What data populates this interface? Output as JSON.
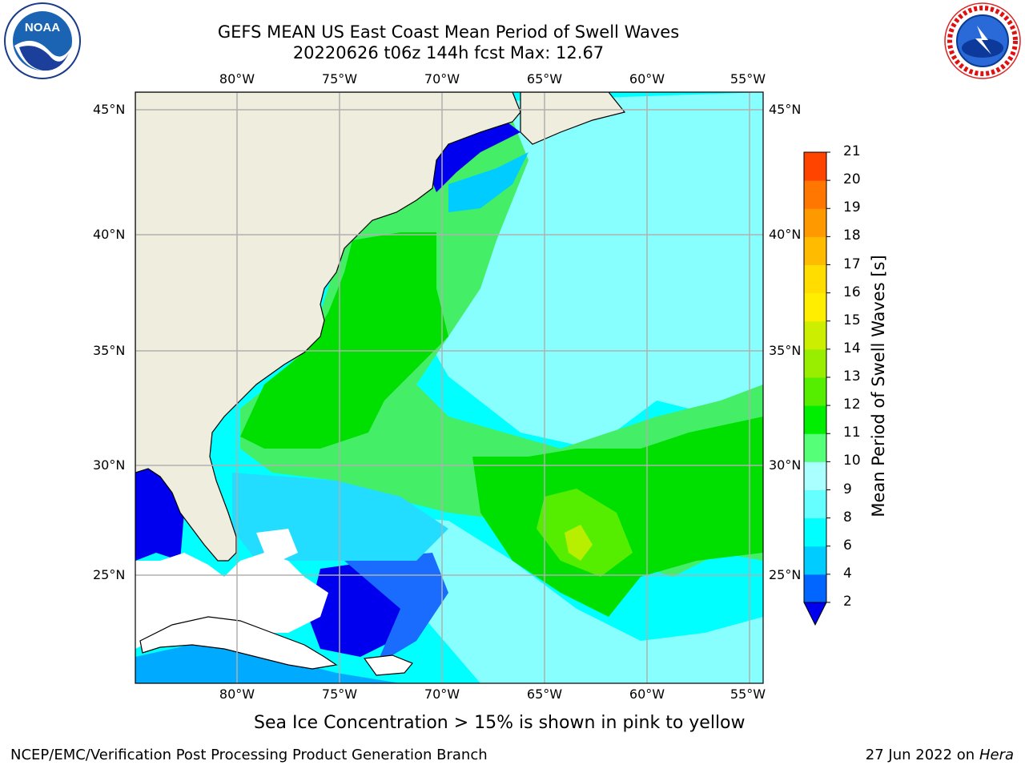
{
  "title": {
    "line1": "GEFS MEAN US East Coast Mean Period of Swell Waves",
    "line2": "20220626 t06z 144h fcst   Max: 12.67"
  },
  "logos": {
    "left": {
      "text": "NOAA",
      "ring_text": "NATIONAL OCEANIC AND ATMOSPHERIC ADMINISTRATION · U.S. DEPARTMENT OF COMMERCE"
    },
    "right": {
      "ring_text": "NATIONAL WEATHER SERVICE"
    }
  },
  "map": {
    "extent": {
      "lon_min": -85,
      "lon_max": -54,
      "lat_min": 20.3,
      "lat_max": 45.8
    },
    "lon_ticks": [
      "80°W",
      "75°W",
      "70°W",
      "65°W",
      "60°W",
      "55°W"
    ],
    "lat_ticks": [
      "45°N",
      "40°N",
      "35°N",
      "30°N",
      "25°N"
    ],
    "land_color": "#efeddd",
    "grid_color": "#b0b0b0"
  },
  "colorbar": {
    "label": "Mean Period of Swell Waves [s]",
    "ticks": [
      "2",
      "4",
      "6",
      "8",
      "9",
      "10",
      "11",
      "12",
      "13",
      "14",
      "15",
      "16",
      "17",
      "18",
      "19",
      "20",
      "21"
    ],
    "colors": [
      "#0000ee",
      "#0066ff",
      "#00ccff",
      "#00ffff",
      "#66ffff",
      "#aaffff",
      "#55ff77",
      "#00ee00",
      "#55ee00",
      "#99ee00",
      "#ccee00",
      "#ffee00",
      "#ffdd00",
      "#ffbb00",
      "#ff9900",
      "#ff7700",
      "#ff4400",
      "#ff0000"
    ]
  },
  "caption": "Sea Ice Concentration > 15% is shown in pink to yellow",
  "footer": {
    "left": "NCEP/EMC/Verification Post Processing Product Generation Branch",
    "date": "27 Jun 2022 on",
    "system": "Hera"
  }
}
